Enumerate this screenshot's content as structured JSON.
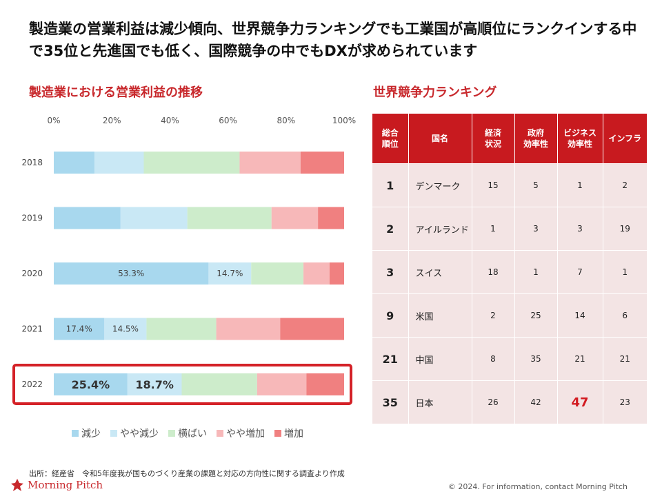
{
  "headline": "製造業の営業利益は減少傾向、世界競争力ランキングでも工業国が高順位にランクインする中で35位と先進国でも低く、国際競争の中でもDXが求められています",
  "chart_title": "製造業における営業利益の推移",
  "ranking_title": "世界競争力ランキング",
  "colors": {
    "accent": "#c8282c",
    "table_header": "#c81a1f",
    "table_cell": "#f3e4e4",
    "highlight_box": "#d42127"
  },
  "chart_data": {
    "type": "bar",
    "orientation": "horizontal",
    "stacked": true,
    "percent": true,
    "categories": [
      "2018",
      "2019",
      "2020",
      "2021",
      "2022"
    ],
    "x_ticks": [
      "0%",
      "20%",
      "40%",
      "60%",
      "80%",
      "100%"
    ],
    "xlim": [
      0,
      100
    ],
    "series": [
      {
        "name": "減少",
        "color": "#a8d8ee",
        "values": [
          14,
          23,
          53.3,
          17.4,
          25.4
        ]
      },
      {
        "name": "やや減少",
        "color": "#c9e8f5",
        "values": [
          17,
          23,
          14.7,
          14.5,
          18.7
        ]
      },
      {
        "name": "横ばい",
        "color": "#cdeccb",
        "values": [
          33,
          29,
          18,
          24,
          26
        ]
      },
      {
        "name": "やや増加",
        "color": "#f7b8b9",
        "values": [
          21,
          16,
          9,
          22,
          17
        ]
      },
      {
        "name": "増加",
        "color": "#f08080",
        "values": [
          15,
          9,
          5,
          22,
          13
        ]
      }
    ],
    "data_labels": [
      {
        "category": "2020",
        "series": "減少",
        "text": "53.3%"
      },
      {
        "category": "2020",
        "series": "やや減少",
        "text": "14.7%"
      },
      {
        "category": "2021",
        "series": "減少",
        "text": "17.4%"
      },
      {
        "category": "2021",
        "series": "やや減少",
        "text": "14.5%"
      },
      {
        "category": "2022",
        "series": "減少",
        "text": "25.4%"
      },
      {
        "category": "2022",
        "series": "やや減少",
        "text": "18.7%"
      }
    ],
    "highlighted_category": "2022",
    "legend_position": "bottom",
    "grid": false
  },
  "ranking": {
    "headers": [
      "総合\n順位",
      "国名",
      "経済\n状況",
      "政府\n効率性",
      "ビジネス\n効率性",
      "インフラ"
    ],
    "rows": [
      [
        "1",
        "デンマーク",
        "15",
        "5",
        "1",
        "2"
      ],
      [
        "2",
        "アイルランド",
        "1",
        "3",
        "3",
        "19"
      ],
      [
        "3",
        "スイス",
        "18",
        "1",
        "7",
        "1"
      ],
      [
        "9",
        "米国",
        "2",
        "25",
        "14",
        "6"
      ],
      [
        "21",
        "中国",
        "8",
        "35",
        "21",
        "21"
      ],
      [
        "35",
        "日本",
        "26",
        "42",
        "47",
        "23"
      ]
    ],
    "highlight_cell": {
      "row": 5,
      "col": 4
    }
  },
  "source": "出所：経産省　令和5年度我が国ものづくり産業の課題と対応の方向性に関する調査より作成",
  "logo_text": "Morning Pitch",
  "copyright": "© 2024. For information, contact Morning Pitch"
}
